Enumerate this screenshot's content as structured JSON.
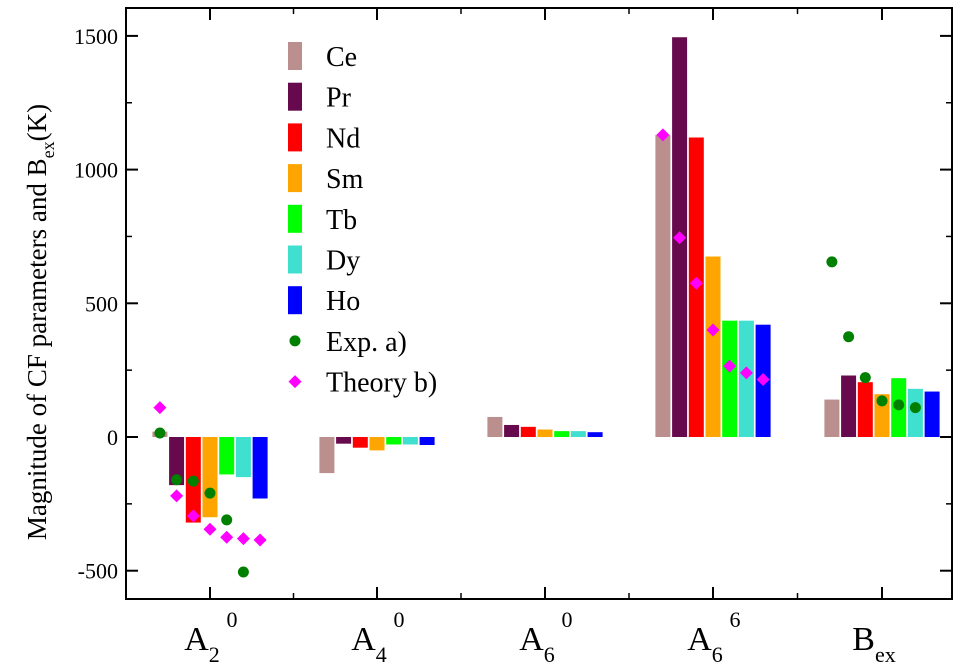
{
  "chart_data": {
    "type": "bar",
    "ylabel": "Magnitude of CF parameters and B",
    "ylabel_subscript": "ex",
    "ylabel_suffix": "(K)",
    "ylim": [
      -600,
      1500
    ],
    "yticks": [
      -500,
      0,
      500,
      1000,
      1500
    ],
    "ytick_labels": [
      "-500",
      "0",
      "500",
      "1000",
      "1500"
    ],
    "grid": false,
    "legend_position": "top-left",
    "categories": [
      {
        "base": "A",
        "sub": "2",
        "sup": "0"
      },
      {
        "base": "A",
        "sub": "4",
        "sup": "0"
      },
      {
        "base": "A",
        "sub": "6",
        "sup": "0"
      },
      {
        "base": "A",
        "sub": "6",
        "sup": "6"
      },
      {
        "base": "B",
        "sub": "ex",
        "sup": ""
      }
    ],
    "series": [
      {
        "name": "Ce",
        "color": "#bc8f8f",
        "values": [
          20,
          -135,
          75,
          1130,
          140
        ]
      },
      {
        "name": "Pr",
        "color": "#670a4d",
        "values": [
          -180,
          -25,
          45,
          1495,
          230
        ]
      },
      {
        "name": "Nd",
        "color": "#ff0000",
        "values": [
          -320,
          -40,
          38,
          1120,
          205
        ]
      },
      {
        "name": "Sm",
        "color": "#ffa500",
        "values": [
          -300,
          -50,
          28,
          675,
          160
        ]
      },
      {
        "name": "Tb",
        "color": "#00ff00",
        "values": [
          -140,
          -28,
          22,
          435,
          220
        ]
      },
      {
        "name": "Dy",
        "color": "#40e0d0",
        "values": [
          -150,
          -28,
          22,
          435,
          180
        ]
      },
      {
        "name": "Ho",
        "color": "#0000ff",
        "values": [
          -230,
          -30,
          18,
          420,
          170
        ]
      }
    ],
    "points": [
      {
        "name": "Exp. a)",
        "color": "#008000",
        "marker": "circle",
        "values": [
          [
            15,
            -160,
            -165,
            -210,
            -310,
            -505
          ],
          null,
          null,
          null,
          [
            655,
            375,
            222,
            135,
            120,
            110
          ]
        ]
      },
      {
        "name": "Theory b)",
        "color": "#ff00ff",
        "marker": "diamond",
        "values": [
          [
            110,
            -220,
            -295,
            -345,
            -375,
            -380,
            -385
          ],
          null,
          null,
          [
            1130,
            745,
            575,
            400,
            265,
            240,
            215
          ],
          null
        ]
      }
    ]
  }
}
